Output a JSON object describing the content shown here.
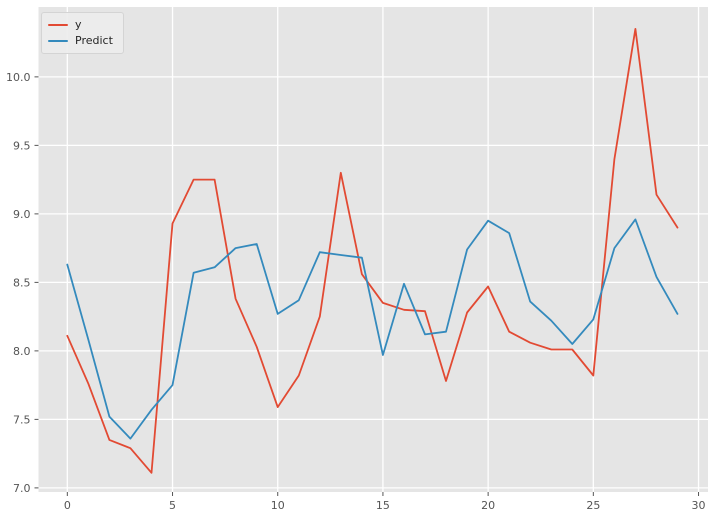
{
  "chart_data": {
    "type": "line",
    "title": "",
    "xlabel": "",
    "ylabel": "",
    "x": [
      0,
      1,
      2,
      3,
      4,
      5,
      6,
      7,
      8,
      9,
      10,
      11,
      12,
      13,
      14,
      15,
      16,
      17,
      18,
      19,
      20,
      21,
      22,
      23,
      24,
      25,
      26,
      27,
      28,
      29
    ],
    "series": [
      {
        "name": "y",
        "color": "#E24A33",
        "values": [
          8.11,
          7.76,
          7.35,
          7.29,
          7.11,
          8.93,
          9.25,
          9.25,
          8.38,
          8.03,
          7.59,
          7.82,
          8.25,
          9.3,
          8.56,
          8.35,
          8.3,
          8.29,
          7.78,
          8.28,
          8.47,
          8.14,
          8.06,
          8.01,
          8.01,
          7.82,
          9.4,
          10.35,
          9.14,
          8.9
        ]
      },
      {
        "name": "Predict",
        "color": "#348ABD",
        "values": [
          8.63,
          8.08,
          7.52,
          7.36,
          7.57,
          7.75,
          8.57,
          8.61,
          8.75,
          8.78,
          8.27,
          8.37,
          8.72,
          8.7,
          8.68,
          7.97,
          8.49,
          8.12,
          8.14,
          8.74,
          8.95,
          8.86,
          8.36,
          8.22,
          8.05,
          8.23,
          8.75,
          8.96,
          8.54,
          8.27
        ]
      }
    ],
    "x_ticks": [
      0,
      5,
      10,
      15,
      20,
      25,
      30
    ],
    "y_ticks": [
      7.0,
      7.5,
      8.0,
      8.5,
      9.0,
      9.5,
      10.0
    ],
    "xlim": [
      -1.37,
      30.45
    ],
    "ylim": [
      6.97,
      10.51
    ],
    "grid": true,
    "legend_position": "upper-left",
    "plot_bg": "#E5E5E5",
    "fig_bg": "#FFFFFF",
    "grid_color": "#FFFFFF",
    "tick_color": "#555555",
    "tick_label_color": "#555555"
  }
}
